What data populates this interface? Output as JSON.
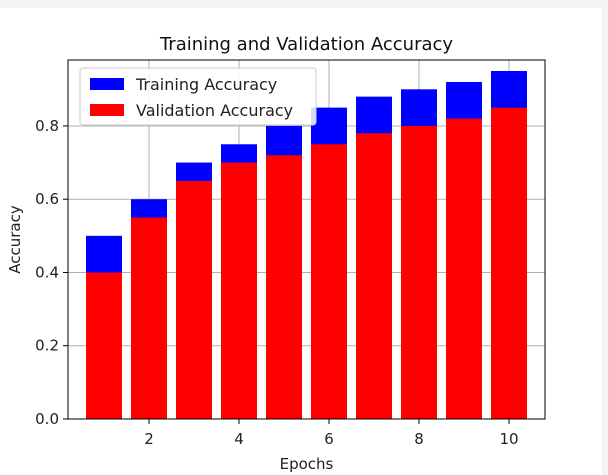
{
  "chart_data": {
    "type": "bar",
    "title": "Training and Validation Accuracy",
    "xlabel": "Epochs",
    "ylabel": "Accuracy",
    "x": [
      1,
      2,
      3,
      4,
      5,
      6,
      7,
      8,
      9,
      10
    ],
    "xlim": [
      0.2,
      10.8
    ],
    "ylim": [
      0,
      0.98
    ],
    "xticks": [
      2,
      4,
      6,
      8,
      10
    ],
    "yticks": [
      0.0,
      0.2,
      0.4,
      0.6,
      0.8
    ],
    "xtick_labels": [
      "2",
      "4",
      "6",
      "8",
      "10"
    ],
    "ytick_labels": [
      "0.0",
      "0.2",
      "0.4",
      "0.6",
      "0.8"
    ],
    "grid": true,
    "legend_position": "top-left",
    "series": [
      {
        "name": "Training Accuracy",
        "color": "#0000ff",
        "values": [
          0.5,
          0.6,
          0.7,
          0.75,
          0.8,
          0.85,
          0.88,
          0.9,
          0.92,
          0.95
        ]
      },
      {
        "name": "Validation Accuracy",
        "color": "#ff0000",
        "values": [
          0.4,
          0.55,
          0.65,
          0.7,
          0.72,
          0.75,
          0.78,
          0.8,
          0.82,
          0.85
        ]
      }
    ]
  }
}
